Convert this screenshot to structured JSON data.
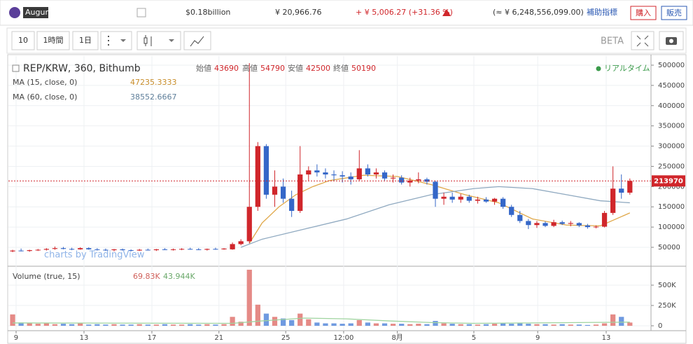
{
  "header": {
    "coin": "Augur",
    "market_cap": "$0.18billion",
    "price": "¥ 20,966.76",
    "change": "+ ¥ 5,006.27 (+31.36 %)",
    "volume": "(≈ ¥ 6,248,556,099.00)",
    "indicators": "補助指標",
    "buy": "購入",
    "sell": "販売"
  },
  "toolbar": {
    "zoom": "10",
    "interval": "1時間",
    "range": "1日",
    "beta": "BETA"
  },
  "chart_data": {
    "type": "candlestick",
    "title": "REP/KRW, 360, Bithumb",
    "legend": {
      "open_label": "始値",
      "open": "43690",
      "high_label": "高値",
      "high": "54790",
      "low_label": "安値",
      "low": "42500",
      "close_label": "終値",
      "close": "50190"
    },
    "realtime": "リアルタイム",
    "watermark": "charts by TradingView",
    "up_color": "#d0262b",
    "down_color": "#3567c8",
    "grid": true,
    "xlim": [
      0,
      76
    ],
    "xticks": [
      {
        "value": 0.91,
        "label": "9"
      },
      {
        "value": 8.94,
        "label": "13"
      },
      {
        "value": 16.97,
        "label": "17"
      },
      {
        "value": 24.9,
        "label": "21"
      },
      {
        "value": 32.8,
        "label": "25"
      },
      {
        "value": 39.65,
        "label": "12:00"
      },
      {
        "value": 46.0,
        "label": "8月"
      },
      {
        "value": 55.05,
        "label": "5"
      },
      {
        "value": 62.6,
        "label": "9"
      },
      {
        "value": 70.7,
        "label": "13"
      }
    ],
    "ylim": [
      6750,
      522500
    ],
    "yticks": [
      50000,
      100000,
      150000,
      200000,
      250000,
      300000,
      350000,
      400000,
      450000,
      500000
    ],
    "x": [
      0.5,
      1.5,
      2.5,
      3.5,
      4.5,
      5.5,
      6.5,
      7.5,
      8.5,
      9.5,
      10.5,
      11.5,
      12.5,
      13.5,
      14.5,
      15.5,
      16.5,
      17.5,
      18.5,
      19.5,
      20.5,
      21.5,
      22.5,
      23.5,
      24.5,
      25.5,
      26.5,
      27.5,
      28.5,
      29.5,
      30.5,
      31.5,
      32.5,
      33.5,
      34.5,
      35.5,
      36.5,
      37.5,
      38.5,
      39.5,
      40.5,
      41.5,
      42.5,
      43.5,
      44.5,
      45.5,
      46.5,
      47.5,
      48.5,
      49.5,
      50.5,
      51.5,
      52.5,
      53.5,
      54.5,
      55.5,
      56.5,
      57.5,
      58.5,
      59.5,
      60.5,
      61.5,
      62.5,
      63.5,
      64.5,
      65.5,
      66.5,
      67.5,
      68.5,
      69.5,
      70.5,
      71.5,
      72.5,
      73.5
    ],
    "ohlc": [
      [
        40000,
        44000,
        38000,
        42000
      ],
      [
        42000,
        47000,
        40000,
        41000
      ],
      [
        41000,
        44000,
        39000,
        43000
      ],
      [
        43000,
        46000,
        41000,
        44000
      ],
      [
        44000,
        48000,
        42000,
        46000
      ],
      [
        46000,
        52000,
        44000,
        48000
      ],
      [
        48000,
        51000,
        45000,
        46000
      ],
      [
        46000,
        49000,
        43000,
        45000
      ],
      [
        45000,
        50000,
        44000,
        48000
      ],
      [
        48000,
        50000,
        44000,
        45000
      ],
      [
        45000,
        48000,
        42000,
        44000
      ],
      [
        44000,
        47000,
        41000,
        43000
      ],
      [
        43000,
        46000,
        40000,
        45000
      ],
      [
        45000,
        47000,
        42000,
        43000
      ],
      [
        43000,
        45000,
        40000,
        42000
      ],
      [
        42000,
        46000,
        41000,
        44000
      ],
      [
        44000,
        47000,
        42000,
        43000
      ],
      [
        43000,
        46000,
        41000,
        45000
      ],
      [
        45000,
        48000,
        43000,
        44000
      ],
      [
        44000,
        47000,
        42000,
        45000
      ],
      [
        45000,
        48000,
        43000,
        46000
      ],
      [
        46000,
        49000,
        44000,
        45000
      ],
      [
        45000,
        48000,
        43000,
        44000
      ],
      [
        44000,
        47000,
        42000,
        46000
      ],
      [
        46000,
        49000,
        44000,
        45000
      ],
      [
        45000,
        48000,
        44000,
        47000
      ],
      [
        45000,
        62000,
        44000,
        58000
      ],
      [
        58000,
        70000,
        55000,
        65000
      ],
      [
        65000,
        505000,
        60000,
        150000
      ],
      [
        150000,
        310000,
        140000,
        300000
      ],
      [
        300000,
        305000,
        170000,
        180000
      ],
      [
        180000,
        240000,
        150000,
        200000
      ],
      [
        200000,
        220000,
        160000,
        170000
      ],
      [
        170000,
        190000,
        125000,
        140000
      ],
      [
        140000,
        300000,
        135000,
        230000
      ],
      [
        230000,
        250000,
        215000,
        240000
      ],
      [
        240000,
        255000,
        225000,
        235000
      ],
      [
        235000,
        245000,
        220000,
        230000
      ],
      [
        230000,
        240000,
        215000,
        228000
      ],
      [
        228000,
        238000,
        210000,
        225000
      ],
      [
        225000,
        235000,
        205000,
        218000
      ],
      [
        218000,
        290000,
        215000,
        245000
      ],
      [
        245000,
        255000,
        225000,
        230000
      ],
      [
        230000,
        245000,
        220000,
        235000
      ],
      [
        235000,
        240000,
        215000,
        220000
      ],
      [
        220000,
        230000,
        210000,
        222000
      ],
      [
        222000,
        228000,
        205000,
        210000
      ],
      [
        210000,
        222000,
        200000,
        215000
      ],
      [
        215000,
        235000,
        208000,
        218000
      ],
      [
        218000,
        222000,
        205000,
        212000
      ],
      [
        212000,
        215000,
        150000,
        170000
      ],
      [
        170000,
        185000,
        155000,
        175000
      ],
      [
        175000,
        185000,
        160000,
        168000
      ],
      [
        168000,
        182000,
        160000,
        175000
      ],
      [
        175000,
        180000,
        160000,
        165000
      ],
      [
        165000,
        175000,
        158000,
        168000
      ],
      [
        168000,
        174000,
        160000,
        163000
      ],
      [
        163000,
        172000,
        155000,
        170000
      ],
      [
        170000,
        174000,
        145000,
        150000
      ],
      [
        150000,
        155000,
        125000,
        130000
      ],
      [
        130000,
        140000,
        110000,
        115000
      ],
      [
        115000,
        120000,
        95000,
        105000
      ],
      [
        105000,
        115000,
        98000,
        110000
      ],
      [
        110000,
        114000,
        100000,
        103000
      ],
      [
        103000,
        118000,
        100000,
        112000
      ],
      [
        112000,
        116000,
        105000,
        108000
      ],
      [
        108000,
        115000,
        102000,
        110000
      ],
      [
        110000,
        112000,
        100000,
        104000
      ],
      [
        104000,
        108000,
        96000,
        100000
      ],
      [
        100000,
        104000,
        97000,
        101000
      ],
      [
        101000,
        140000,
        99000,
        135000
      ],
      [
        135000,
        250000,
        130000,
        195000
      ],
      [
        195000,
        230000,
        170000,
        185000
      ],
      [
        185000,
        220000,
        180000,
        213970
      ]
    ],
    "indicators": [
      {
        "name": "MA (15, close, 0)",
        "value": "47235.3333",
        "color": "#e0a84a",
        "x": [
          28.5,
          30,
          32,
          34,
          36,
          38,
          42,
          46,
          50,
          54,
          58,
          62,
          66,
          70,
          73.5
        ],
        "values": [
          60000,
          110000,
          150000,
          180000,
          200000,
          215000,
          228000,
          225000,
          205000,
          180000,
          160000,
          120000,
          105000,
          103000,
          135000
        ]
      },
      {
        "name": "MA (60, close, 0)",
        "value": "38552.6667",
        "color": "#8fa9c0",
        "x": [
          27.5,
          30,
          35,
          40,
          45,
          50,
          55,
          58,
          62,
          66,
          70,
          73.5
        ],
        "values": [
          50000,
          70000,
          95000,
          120000,
          155000,
          180000,
          195000,
          200000,
          195000,
          180000,
          165000,
          160000
        ]
      }
    ],
    "volume": {
      "name": "Volume (true, 15)",
      "value": "69.83K",
      "ma_value": "43.944K",
      "up_color": "#e58a86",
      "down_color": "#6f9ae0",
      "ma_color": "#9fd49f",
      "ylim": [
        -43000,
        707000
      ],
      "yticks": [
        0,
        {
          "value": 250000,
          "label": "250K"
        },
        {
          "value": 500000,
          "label": "500K"
        }
      ],
      "values": [
        140000,
        40000,
        30000,
        25000,
        30000,
        20000,
        25000,
        20000,
        30000,
        15000,
        20000,
        15000,
        20000,
        15000,
        15000,
        20000,
        15000,
        15000,
        20000,
        15000,
        15000,
        20000,
        15000,
        20000,
        15000,
        20000,
        110000,
        50000,
        690000,
        260000,
        150000,
        110000,
        90000,
        70000,
        150000,
        80000,
        40000,
        30000,
        30000,
        25000,
        30000,
        70000,
        40000,
        30000,
        30000,
        25000,
        25000,
        20000,
        25000,
        20000,
        60000,
        30000,
        25000,
        20000,
        20000,
        15000,
        20000,
        25000,
        30000,
        25000,
        30000,
        25000,
        20000,
        20000,
        15000,
        20000,
        15000,
        15000,
        10000,
        15000,
        30000,
        140000,
        110000,
        40000
      ],
      "ma_x": [
        0.5,
        26.5,
        30,
        35,
        40,
        45,
        50,
        55,
        73.5
      ],
      "ma_values": [
        35000,
        30000,
        60000,
        95000,
        85000,
        60000,
        40000,
        30000,
        45000
      ]
    }
  }
}
